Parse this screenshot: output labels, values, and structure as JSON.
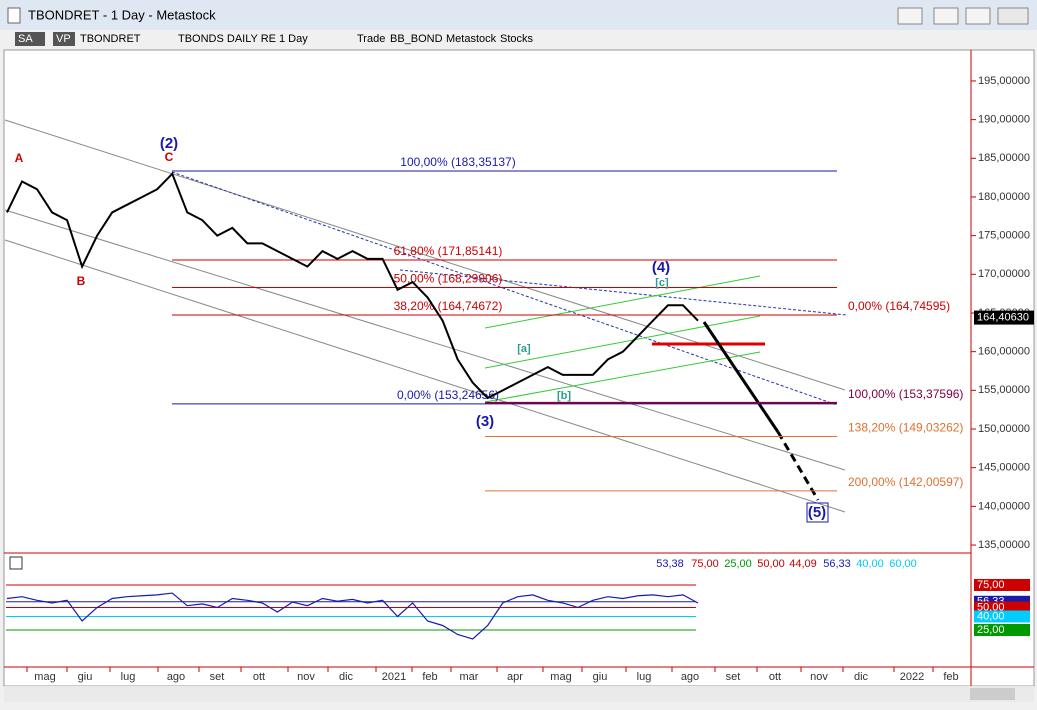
{
  "window": {
    "title": "TBONDRET - 1 Day - Metastock"
  },
  "toolbar": {
    "items": [
      "SA",
      "VP",
      "TBONDRET",
      "TBONDS DAILY RE",
      "1 Day",
      "Trade",
      "BB_BOND",
      "Metastock",
      "Stocks"
    ]
  },
  "price_chart": {
    "ylim": [
      134.1,
      199
    ],
    "yticks": [
      {
        "value": 195,
        "label": "195,00000"
      },
      {
        "value": 190,
        "label": "190,00000"
      },
      {
        "value": 185,
        "label": "185,00000"
      },
      {
        "value": 180,
        "label": "180,00000"
      },
      {
        "value": 175,
        "label": "175,00000"
      },
      {
        "value": 170,
        "label": "170,00000"
      },
      {
        "value": 165,
        "label": "165,00000"
      },
      {
        "value": 160,
        "label": "160,00000"
      },
      {
        "value": 155,
        "label": "155,00000"
      },
      {
        "value": 150,
        "label": "150,00000"
      },
      {
        "value": 145,
        "label": "145,00000"
      },
      {
        "value": 140,
        "label": "140,00000"
      },
      {
        "value": 135,
        "label": "135,00000"
      }
    ],
    "last_price": {
      "value": 164.4063,
      "label": "164,40630"
    },
    "color": "#000000",
    "close": [
      178,
      182,
      181,
      178,
      177,
      171,
      175,
      178,
      179,
      180,
      181,
      183,
      178,
      177,
      175,
      176,
      174,
      174,
      173,
      172,
      171,
      173,
      172,
      173,
      172,
      172,
      168,
      169,
      167,
      164,
      159,
      156,
      154,
      155,
      156,
      157,
      158,
      157,
      157,
      157,
      159,
      160,
      162,
      164,
      166,
      166,
      164
    ],
    "levels": [
      {
        "value": 183.35137,
        "label": "100,00% (183,35137)"
      },
      {
        "value": 171.85141,
        "label": "61,80% (171,85141)"
      },
      {
        "value": 168.29906,
        "label": "50,00% (168,29906)"
      },
      {
        "value": 164.74672,
        "label": "38,20% (164,74672)"
      },
      {
        "value": 153.24656,
        "label": "0,00% (153,24656)"
      },
      {
        "value": 164.74595,
        "label": "0,00% (164,74595)"
      },
      {
        "value": 153.37596,
        "label": "100,00% (153,37596)"
      },
      {
        "value": 149.03262,
        "label": "138,20% (149,03262)"
      },
      {
        "value": 142.00597,
        "label": "200,00% (142,00597)"
      }
    ],
    "waves": [
      "A",
      "B",
      "(2)",
      "C",
      "(3)",
      "(4)",
      "[a]",
      "[b]",
      "[c]",
      "(5)"
    ]
  },
  "indicator": {
    "ylim": [
      -15,
      108.3
    ],
    "header": [
      "53,38",
      "75,00",
      "25,00",
      "50,00",
      "44,09",
      "56,33",
      "40,00",
      "60,00"
    ],
    "axis": [
      {
        "value": 75,
        "label": "75,00"
      },
      {
        "value": 56.33,
        "label": "56,33"
      },
      {
        "value": 50,
        "label": "50,00"
      },
      {
        "value": 40,
        "label": "40,00"
      },
      {
        "value": 25,
        "label": "25,00"
      }
    ],
    "values": [
      60,
      62,
      58,
      55,
      58,
      35,
      50,
      60,
      62,
      63,
      64,
      66,
      52,
      54,
      50,
      60,
      58,
      55,
      45,
      56,
      52,
      60,
      57,
      59,
      55,
      58,
      40,
      55,
      35,
      30,
      20,
      15,
      30,
      55,
      62,
      64,
      58,
      55,
      50,
      58,
      62,
      60,
      63,
      64,
      62,
      64,
      55
    ]
  },
  "x_axis": {
    "labels": [
      "mag",
      "giu",
      "lug",
      "ago",
      "set",
      "ott",
      "nov",
      "dic",
      "2021",
      "feb",
      "mar",
      "apr",
      "mag",
      "giu",
      "lug",
      "ago",
      "set",
      "ott",
      "nov",
      "dic",
      "2022",
      "feb"
    ]
  }
}
